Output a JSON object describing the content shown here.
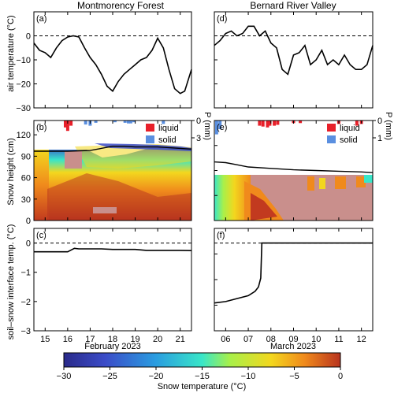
{
  "columns": [
    {
      "title": "Montmorency Forest",
      "xlabel": "February 2023"
    },
    {
      "title": "Bernard River Valley",
      "xlabel": "March 2023"
    }
  ],
  "precip_legend": {
    "liquid": "liquid",
    "solid": "solid",
    "axis_label": "P (mm)"
  },
  "colorbar": {
    "label": "Snow temperature (°C)",
    "ticks": [
      "−30",
      "−25",
      "−20",
      "−15",
      "−10",
      "−5",
      "0"
    ],
    "range": [
      -30,
      0
    ]
  },
  "colors": {
    "liquid": "#e8202a",
    "solid": "#5a8fe0",
    "masked": "#c98f8c"
  },
  "chart_data": [
    {
      "panel": "(a)",
      "type": "line",
      "ylabel": "air temperature (°C)",
      "ylim": [
        -30,
        10
      ],
      "yticks": [
        "−30",
        "−20",
        "−10",
        "0"
      ],
      "hline_dashed": 0,
      "xlim": [
        14.5,
        21.5
      ],
      "xticks": [
        "15",
        "16",
        "17",
        "18",
        "19",
        "20",
        "21"
      ],
      "x": [
        14.5,
        14.75,
        15.0,
        15.25,
        15.5,
        15.75,
        16.0,
        16.25,
        16.5,
        16.75,
        17.0,
        17.25,
        17.5,
        17.75,
        18.0,
        18.25,
        18.5,
        18.75,
        19.0,
        19.25,
        19.5,
        19.75,
        20.0,
        20.25,
        20.5,
        20.75,
        21.0,
        21.2,
        21.5
      ],
      "y": [
        -3,
        -6,
        -7,
        -9,
        -5,
        -2,
        -0.5,
        0,
        -0.5,
        -5,
        -9,
        -12,
        -16,
        -21,
        -23,
        -19,
        -16,
        -14,
        -12,
        -10,
        -9,
        -6,
        -1,
        -5,
        -14,
        -22,
        -24,
        -23,
        -14
      ]
    },
    {
      "panel": "(b)",
      "type": "heatmap",
      "ylabel": "Snow height (cm)",
      "ylim": [
        0,
        140
      ],
      "yticks": [
        "0",
        "30",
        "60",
        "90",
        "120"
      ],
      "xlim": [
        14.5,
        21.5
      ],
      "xticks": [
        "15",
        "16",
        "17",
        "18",
        "19",
        "20",
        "21"
      ],
      "precip_ylim": [
        0,
        3
      ],
      "precip_yticks": [
        "0",
        "3"
      ],
      "precip": [
        {
          "x": 15.9,
          "value": 1.2,
          "kind": "liquid"
        },
        {
          "x": 16.0,
          "value": 1.8,
          "kind": "liquid"
        },
        {
          "x": 16.15,
          "value": 0.9,
          "kind": "liquid"
        },
        {
          "x": 16.8,
          "value": 0.7,
          "kind": "solid"
        },
        {
          "x": 17.0,
          "value": 0.9,
          "kind": "solid"
        },
        {
          "x": 17.25,
          "value": 0.4,
          "kind": "solid"
        },
        {
          "x": 18.1,
          "value": 0.3,
          "kind": "solid"
        },
        {
          "x": 18.55,
          "value": 0.4,
          "kind": "solid"
        },
        {
          "x": 18.7,
          "value": 0.5,
          "kind": "solid"
        },
        {
          "x": 18.8,
          "value": 0.5,
          "kind": "solid"
        },
        {
          "x": 18.95,
          "value": 0.3,
          "kind": "solid"
        },
        {
          "x": 20.25,
          "value": 0.6,
          "kind": "solid"
        }
      ],
      "snow_top": {
        "x": [
          14.5,
          16.0,
          17.0,
          18.0,
          18.5,
          19.0,
          20.0,
          21.0,
          21.5
        ],
        "y": [
          97,
          97,
          98,
          104,
          104,
          103,
          103,
          101,
          100
        ]
      }
    },
    {
      "panel": "(c)",
      "type": "line",
      "ylabel": "soil–snow interface temp. (°C)",
      "ylim": [
        -3,
        0.5
      ],
      "yticks": [
        "−3",
        "−2",
        "−1",
        "0"
      ],
      "hline_dashed": 0,
      "xlim": [
        14.5,
        21.5
      ],
      "xticks": [
        "15",
        "16",
        "17",
        "18",
        "19",
        "20",
        "21"
      ],
      "x": [
        14.5,
        15.0,
        15.5,
        16.0,
        16.3,
        16.5,
        17.0,
        17.5,
        18.0,
        18.5,
        19.0,
        19.5,
        20.0,
        20.5,
        21.0,
        21.5
      ],
      "y": [
        -0.3,
        -0.3,
        -0.3,
        -0.3,
        -0.18,
        -0.2,
        -0.2,
        -0.2,
        -0.22,
        -0.22,
        -0.22,
        -0.25,
        -0.25,
        -0.25,
        -0.25,
        -0.26
      ]
    },
    {
      "panel": "(d)",
      "type": "line",
      "ylim": [
        -30,
        10
      ],
      "hline_dashed": 0,
      "xlim": [
        5.5,
        12.5
      ],
      "xticks": [
        "06",
        "07",
        "08",
        "09",
        "10",
        "11",
        "12"
      ],
      "x": [
        5.5,
        5.75,
        6.0,
        6.25,
        6.5,
        6.75,
        7.0,
        7.25,
        7.5,
        7.75,
        8.0,
        8.25,
        8.5,
        8.75,
        9.0,
        9.25,
        9.5,
        9.75,
        10.0,
        10.25,
        10.5,
        10.75,
        11.0,
        11.25,
        11.5,
        11.75,
        12.0,
        12.25,
        12.5
      ],
      "y": [
        -4,
        -2,
        1,
        2,
        0,
        1,
        4,
        4,
        0,
        2,
        -3,
        -5,
        -14,
        -16,
        -8,
        -7,
        -4,
        -12,
        -10,
        -6,
        -12,
        -10,
        -12,
        -8,
        -12,
        -14,
        -14,
        -12,
        -4
      ]
    },
    {
      "panel": "(e)",
      "type": "heatmap",
      "ylim": [
        0,
        140
      ],
      "xlim": [
        5.5,
        12.5
      ],
      "xticks": [
        "06",
        "07",
        "08",
        "09",
        "10",
        "11",
        "12"
      ],
      "precip_ylim": [
        0,
        1
      ],
      "precip_yticks": [
        "0",
        "1"
      ],
      "precip": [
        {
          "x": 5.6,
          "value": 0.8,
          "kind": "solid"
        },
        {
          "x": 5.75,
          "value": 0.5,
          "kind": "solid"
        },
        {
          "x": 7.5,
          "value": 0.3,
          "kind": "liquid"
        },
        {
          "x": 7.65,
          "value": 0.35,
          "kind": "liquid"
        },
        {
          "x": 7.85,
          "value": 0.4,
          "kind": "liquid"
        },
        {
          "x": 7.95,
          "value": 0.3,
          "kind": "liquid"
        },
        {
          "x": 8.15,
          "value": 0.3,
          "kind": "liquid"
        },
        {
          "x": 8.3,
          "value": 0.25,
          "kind": "liquid"
        },
        {
          "x": 9.0,
          "value": 0.15,
          "kind": "liquid"
        },
        {
          "x": 9.3,
          "value": 0.15,
          "kind": "liquid"
        },
        {
          "x": 11.0,
          "value": 0.2,
          "kind": "liquid"
        },
        {
          "x": 11.8,
          "value": 0.3,
          "kind": "liquid"
        },
        {
          "x": 12.0,
          "value": 0.2,
          "kind": "liquid"
        }
      ],
      "snow_top": {
        "x": [
          5.5,
          6.0,
          6.5,
          7.0,
          8.0,
          9.0,
          10.0,
          11.0,
          12.0,
          12.5
        ],
        "y": [
          82,
          81,
          78,
          75,
          73,
          71,
          70,
          69,
          68,
          67
        ]
      }
    },
    {
      "panel": "(f)",
      "type": "line",
      "ylim": [
        -3,
        0.5
      ],
      "hline_dashed": 0,
      "xlim": [
        5.5,
        12.5
      ],
      "xticks": [
        "06",
        "07",
        "08",
        "09",
        "10",
        "11",
        "12"
      ],
      "x": [
        5.5,
        6.0,
        6.5,
        7.0,
        7.3,
        7.45,
        7.55,
        7.6,
        8.0,
        9.0,
        10.0,
        11.0,
        12.0,
        12.5
      ],
      "y": [
        -2.05,
        -2.0,
        -1.9,
        -1.8,
        -1.65,
        -1.5,
        -1.2,
        0.0,
        0.0,
        0.0,
        0.0,
        0.0,
        0.0,
        0.0
      ]
    }
  ]
}
